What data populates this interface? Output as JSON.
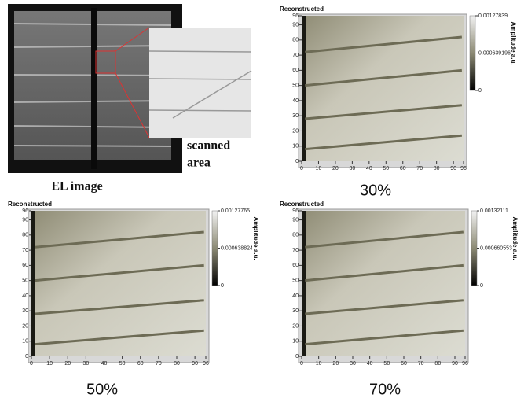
{
  "el_panel": {
    "scanned_area": [
      "scanned",
      "area"
    ],
    "caption": "EL image"
  },
  "panels": [
    {
      "title": "Reconstructed",
      "xticks": [
        0,
        10,
        20,
        30,
        40,
        50,
        60,
        70,
        80,
        90,
        96
      ],
      "yticks": [
        0,
        10,
        20,
        30,
        40,
        50,
        60,
        70,
        80,
        90,
        96
      ],
      "colorbar_ticks": [
        "0.00127839",
        "0.000639196",
        "0"
      ],
      "colorbar_label": "Amplitude a.u.",
      "caption": "30%"
    },
    {
      "title": "Reconstructed",
      "xticks": [
        0,
        10,
        20,
        30,
        40,
        50,
        60,
        70,
        80,
        90,
        96
      ],
      "yticks": [
        0,
        10,
        20,
        30,
        40,
        50,
        60,
        70,
        80,
        90,
        96
      ],
      "colorbar_ticks": [
        "0.00127765",
        "0.000638824",
        "0"
      ],
      "colorbar_label": "Amplitude a.u.",
      "caption": "50%"
    },
    {
      "title": "Reconstructed",
      "xticks": [
        0,
        10,
        20,
        30,
        40,
        50,
        60,
        70,
        80,
        90,
        96
      ],
      "yticks": [
        0,
        10,
        20,
        30,
        40,
        50,
        60,
        70,
        80,
        90,
        96
      ],
      "colorbar_ticks": [
        "0.00132111",
        "0.000660553",
        "0"
      ],
      "colorbar_label": "Amplitude a.u.",
      "caption": "70%"
    }
  ]
}
